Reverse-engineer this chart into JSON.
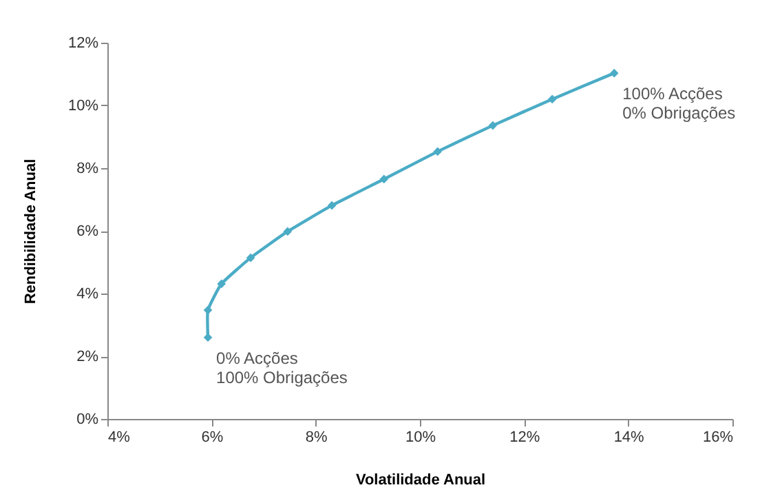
{
  "chart_data": {
    "type": "line",
    "xlabel": "Volatilidade Anual",
    "ylabel": "Rendibilidade Anual",
    "x": [
      5.93,
      5.93,
      6.19,
      6.75,
      7.46,
      8.31,
      9.31,
      10.34,
      11.4,
      12.54,
      13.73
    ],
    "series": [
      {
        "color": "#4bacc6",
        "values": [
          2.6,
          3.47,
          4.31,
          5.14,
          5.98,
          6.81,
          7.65,
          8.53,
          9.36,
          10.2,
          11.03
        ]
      }
    ],
    "xlim": [
      4,
      16
    ],
    "xticks": [
      {
        "value": 4,
        "label": "4%"
      },
      {
        "value": 6,
        "label": "6%"
      },
      {
        "value": 8,
        "label": "8%"
      },
      {
        "value": 10,
        "label": "10%"
      },
      {
        "value": 12,
        "label": "12%"
      },
      {
        "value": 14,
        "label": "14%"
      },
      {
        "value": 16,
        "label": "16%"
      }
    ],
    "ylim": [
      0,
      12
    ],
    "yticks": [
      {
        "value": 0,
        "label": "0%"
      },
      {
        "value": 2,
        "label": "2%"
      },
      {
        "value": 4,
        "label": "4%"
      },
      {
        "value": 6,
        "label": "6%"
      },
      {
        "value": 8,
        "label": "8%"
      },
      {
        "value": 10,
        "label": "10%"
      },
      {
        "value": 12,
        "label": "12%"
      }
    ],
    "annotations": [
      {
        "text": "100% Acções\n0% Obrigações",
        "x": 13.73,
        "y": 11.03
      },
      {
        "text": "0% Acções\n100% Obrigações",
        "x": 5.93,
        "y": 2.6
      }
    ],
    "grid": false,
    "legend": false,
    "marker": "diamond",
    "line_style": "solid"
  }
}
